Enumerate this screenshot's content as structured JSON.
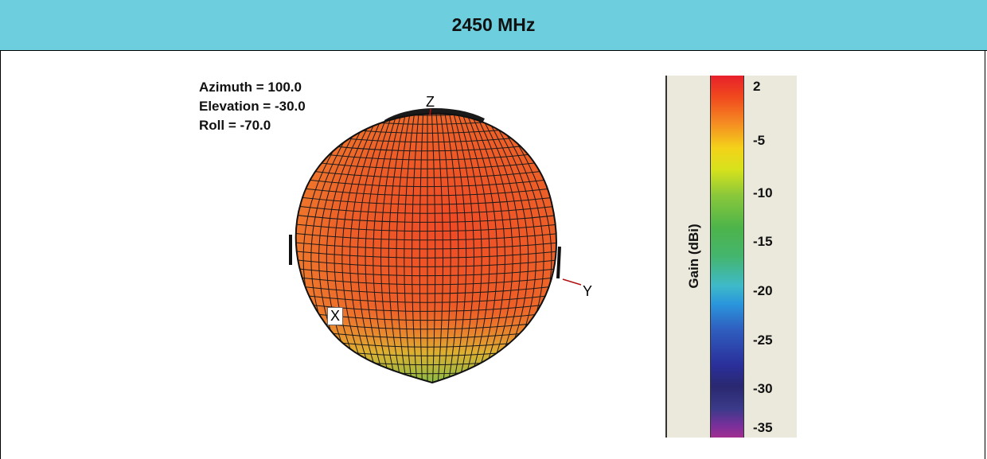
{
  "header": {
    "title": "2450 MHz"
  },
  "view": {
    "azimuth": "Azimuth = 100.0",
    "elevation": "Elevation = -30.0",
    "roll": "Roll = -70.0"
  },
  "axes": {
    "x": "X",
    "y": "Y",
    "z": "Z"
  },
  "colorbar": {
    "label": "Gain (dBi)",
    "ticks": [
      "2",
      "-5",
      "-10",
      "-15",
      "-20",
      "-25",
      "-30",
      "-35"
    ]
  },
  "chart_data": {
    "type": "heatmap",
    "title": "2450 MHz",
    "colorbar_label": "Gain (dBi)",
    "colorbar_range": [
      -35,
      2
    ],
    "colorbar_ticks": [
      2,
      -5,
      -10,
      -15,
      -20,
      -25,
      -30,
      -35
    ],
    "view": {
      "azimuth": 100.0,
      "elevation": -30.0,
      "roll": -70.0
    },
    "axes_labels": [
      "X",
      "Y",
      "Z"
    ],
    "colors": {
      "peak": "#e8502a",
      "low": "#6cc04a"
    }
  }
}
